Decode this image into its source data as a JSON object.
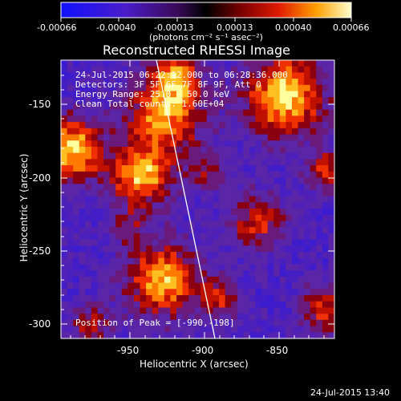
{
  "colorbar": {
    "tick_labels": [
      "-0.00066",
      "-0.00040",
      "-0.00013",
      "0.00013",
      "0.00040",
      "0.00066"
    ],
    "units": "(photons cm⁻² s⁻¹ asec⁻²)"
  },
  "plot": {
    "title": "Reconstructed RHESSI Image",
    "xlabel": "Heliocentric X (arcsec)",
    "ylabel": "Heliocentric Y (arcsec)",
    "x_ticks": [
      "-950",
      "-900",
      "-850"
    ],
    "y_ticks": [
      "-150",
      "-200",
      "-250",
      "-300"
    ],
    "x_range": [
      -998,
      -813
    ],
    "y_range": [
      -312,
      -127
    ]
  },
  "overlay": {
    "line1": "24-Jul-2015 06:22:12.000 to 06:28:36.000",
    "line2": "Detectors: 3F 5F 6F 7F 8F 9F, Att 0",
    "line3": "Energy Range: 25.0 - 50.0 keV",
    "line4": "Clean     Total counts: 1.60E+04",
    "peak": "Position of Peak = [-990,-198]"
  },
  "footer": {
    "timestamp": "24-Jul-2015 13:40"
  },
  "colors": {
    "background": "#000000",
    "text": "#ffffff",
    "limb": "#ffffff"
  }
}
